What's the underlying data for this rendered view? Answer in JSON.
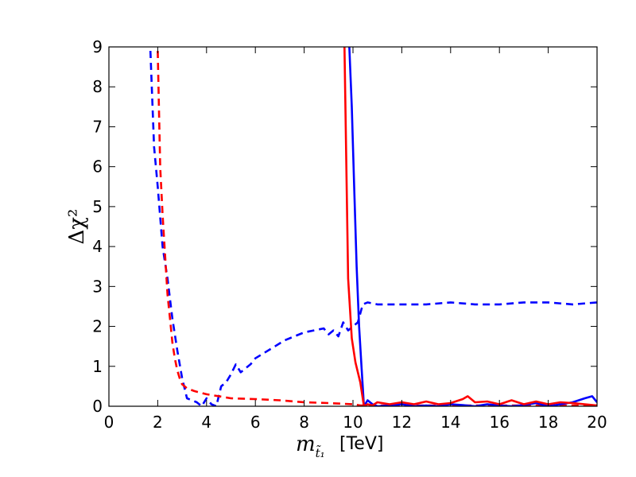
{
  "chart_data": {
    "type": "line",
    "xlabel": "m",
    "xlabel_sub": "t̃₁",
    "xlabel_unit": "[TeV]",
    "ylabel": "Δχ²",
    "xlim": [
      0,
      20
    ],
    "ylim": [
      0,
      9
    ],
    "xticks": [
      0,
      2,
      4,
      6,
      8,
      10,
      12,
      14,
      16,
      18,
      20
    ],
    "yticks": [
      0,
      1,
      2,
      3,
      4,
      5,
      6,
      7,
      8,
      9
    ],
    "grid": false,
    "series": [
      {
        "color": "#0000ff",
        "style": "dashed",
        "x": [
          1.7,
          1.85,
          2.0,
          2.2,
          2.4,
          2.6,
          2.8,
          3.0,
          3.2,
          3.4,
          3.6,
          3.8,
          4.0,
          4.2,
          4.4,
          4.6,
          4.8,
          5.0,
          5.2,
          5.4,
          5.6,
          5.8,
          6.0,
          6.4,
          6.8,
          7.2,
          7.6,
          8.0,
          8.4,
          8.8,
          9.0,
          9.2,
          9.4,
          9.6,
          9.8,
          10.0,
          10.2,
          10.4,
          10.6,
          11.0,
          12.0,
          13.0,
          14.0,
          15.0,
          16.0,
          17.0,
          18.0,
          19.0,
          20.0
        ],
        "y": [
          8.9,
          6.5,
          5.5,
          4.0,
          3.2,
          2.2,
          1.4,
          0.7,
          0.2,
          0.15,
          0.1,
          0.0,
          0.2,
          0.05,
          0.0,
          0.5,
          0.6,
          0.8,
          1.05,
          0.85,
          0.95,
          1.05,
          1.2,
          1.35,
          1.5,
          1.65,
          1.75,
          1.85,
          1.9,
          1.95,
          1.8,
          1.9,
          1.75,
          2.1,
          1.9,
          2.0,
          2.1,
          2.55,
          2.6,
          2.55,
          2.55,
          2.55,
          2.6,
          2.55,
          2.55,
          2.6,
          2.6,
          2.55,
          2.6
        ]
      },
      {
        "color": "#ff0000",
        "style": "dashed",
        "x": [
          2.0,
          2.1,
          2.2,
          2.3,
          2.4,
          2.5,
          2.6,
          2.7,
          2.8,
          2.9,
          3.0,
          3.2,
          3.5,
          4.0,
          4.5,
          5.0,
          6.0,
          7.0,
          8.0,
          9.0,
          10.0,
          10.3,
          11.0,
          12.0,
          14.0,
          16.0,
          18.0,
          20.0
        ],
        "y": [
          8.9,
          6.0,
          4.8,
          3.8,
          2.8,
          2.2,
          1.6,
          1.2,
          0.9,
          0.7,
          0.55,
          0.45,
          0.38,
          0.3,
          0.25,
          0.2,
          0.18,
          0.15,
          0.1,
          0.08,
          0.05,
          0.02,
          0.02,
          0.02,
          0.02,
          0.02,
          0.02,
          0.02
        ]
      },
      {
        "color": "#0000ff",
        "style": "solid",
        "x": [
          9.85,
          9.95,
          10.05,
          10.15,
          10.25,
          10.35,
          10.45,
          10.6,
          10.8,
          11.0,
          11.5,
          12.0,
          12.5,
          13.0,
          13.5,
          14.0,
          14.5,
          15.0,
          15.5,
          16.0,
          16.5,
          17.0,
          17.5,
          18.0,
          18.5,
          19.0,
          19.5,
          19.8,
          20.0
        ],
        "y": [
          9.0,
          7.5,
          5.5,
          3.5,
          2.0,
          1.0,
          0.0,
          0.15,
          0.05,
          0.0,
          0.02,
          0.05,
          0.0,
          0.02,
          0.0,
          0.05,
          0.03,
          0.0,
          0.05,
          0.02,
          0.0,
          0.03,
          0.08,
          0.0,
          0.05,
          0.1,
          0.2,
          0.25,
          0.1
        ]
      },
      {
        "color": "#ff0000",
        "style": "solid",
        "x": [
          9.65,
          9.8,
          9.95,
          10.1,
          10.3,
          10.45,
          10.6,
          10.8,
          11.0,
          11.5,
          12.0,
          12.5,
          13.0,
          13.5,
          14.0,
          14.5,
          14.7,
          15.0,
          15.5,
          16.0,
          16.5,
          17.0,
          17.5,
          18.0,
          18.5,
          19.0,
          19.5,
          20.0
        ],
        "y": [
          9.0,
          3.2,
          1.7,
          1.1,
          0.6,
          0.0,
          0.05,
          0.02,
          0.1,
          0.05,
          0.1,
          0.05,
          0.12,
          0.05,
          0.08,
          0.18,
          0.25,
          0.1,
          0.12,
          0.05,
          0.15,
          0.05,
          0.12,
          0.05,
          0.1,
          0.08,
          0.05,
          0.02
        ]
      }
    ]
  }
}
